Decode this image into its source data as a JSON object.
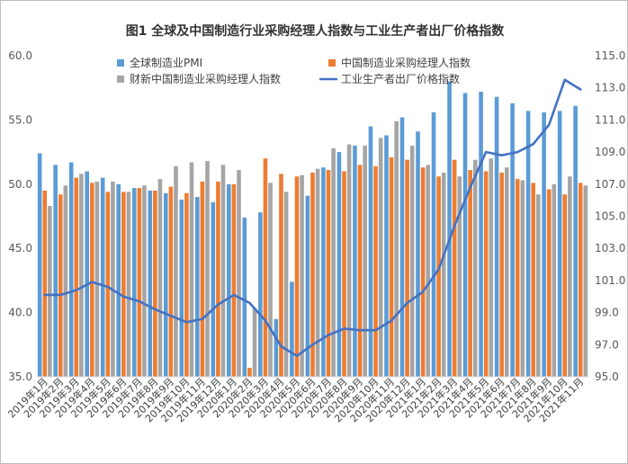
{
  "chart_data": {
    "type": "bar",
    "title": "图1 全球及中国制造行业采购经理人指数与工业生产者出厂价格指数",
    "categories": [
      "2019年1月",
      "2019年2月",
      "2019年3月",
      "2019年4月",
      "2019年5月",
      "2019年6月",
      "2019年7月",
      "2019年8月",
      "2019年9月",
      "2019年10月",
      "2019年11月",
      "2019年12月",
      "2020年1月",
      "2020年2月",
      "2020年3月",
      "2020年4月",
      "2020年5月",
      "2020年6月",
      "2020年7月",
      "2020年8月",
      "2020年9月",
      "2020年10月",
      "2020年11月",
      "2020年12月",
      "2021年1月",
      "2021年2月",
      "2021年3月",
      "2021年4月",
      "2021年5月",
      "2021年6月",
      "2021年7月",
      "2021年8月",
      "2021年9月",
      "2021年10月",
      "2021年11月"
    ],
    "series": [
      {
        "name": "全球制造业PMI",
        "type": "bar",
        "axis": "left",
        "color": "#5b9bd5",
        "values": [
          52.4,
          51.5,
          51.7,
          51.0,
          50.5,
          50.0,
          49.7,
          49.5,
          49.3,
          48.8,
          49.0,
          48.6,
          50.0,
          47.4,
          47.8,
          39.5,
          42.4,
          49.1,
          51.3,
          52.5,
          53.0,
          54.5,
          53.8,
          55.2,
          54.1,
          55.6,
          58.0,
          57.1,
          57.2,
          56.8,
          56.3,
          55.7,
          55.6,
          55.7,
          56.1
        ]
      },
      {
        "name": "中国制造业采购经理人指数",
        "type": "bar",
        "axis": "left",
        "color": "#ed7d31",
        "values": [
          49.5,
          49.2,
          50.5,
          50.1,
          49.4,
          49.4,
          49.7,
          49.5,
          49.8,
          49.3,
          50.2,
          50.2,
          50.0,
          35.7,
          52.0,
          50.8,
          50.6,
          50.9,
          51.1,
          51.0,
          51.5,
          51.4,
          52.1,
          51.9,
          51.3,
          50.6,
          51.9,
          51.1,
          51.0,
          50.9,
          50.4,
          50.1,
          49.6,
          49.2,
          50.1
        ]
      },
      {
        "name": "财新中国制造业采购经理人指数",
        "type": "bar",
        "axis": "left",
        "color": "#a5a5a5",
        "values": [
          48.3,
          49.9,
          50.8,
          50.2,
          50.2,
          49.4,
          49.9,
          50.4,
          51.4,
          51.7,
          51.8,
          51.5,
          51.1,
          40.3,
          50.1,
          49.4,
          50.7,
          51.2,
          52.8,
          53.1,
          53.0,
          53.6,
          54.9,
          53.0,
          51.5,
          50.9,
          50.6,
          51.9,
          52.0,
          51.3,
          50.3,
          49.2,
          50.0,
          50.6,
          49.9
        ]
      },
      {
        "name": "工业生产者出厂价格指数",
        "type": "line",
        "axis": "right",
        "color": "#4472c4",
        "values": [
          100.1,
          100.1,
          100.4,
          100.9,
          100.6,
          100.0,
          99.7,
          99.2,
          98.8,
          98.4,
          98.6,
          99.5,
          100.1,
          99.6,
          98.5,
          96.9,
          96.3,
          97.0,
          97.6,
          98.0,
          97.9,
          97.9,
          98.5,
          99.6,
          100.3,
          101.7,
          104.4,
          106.8,
          109.0,
          108.8,
          109.0,
          109.5,
          110.7,
          113.5,
          112.9
        ]
      }
    ],
    "ylim_left": [
      35.0,
      60.0
    ],
    "yticks_left": [
      "35.0",
      "40.0",
      "45.0",
      "50.0",
      "55.0",
      "60.0"
    ],
    "ylim_right": [
      95.0,
      115.0
    ],
    "yticks_right": [
      "95.0",
      "97.0",
      "99.0",
      "101.0",
      "103.0",
      "105.0",
      "107.0",
      "109.0",
      "111.0",
      "113.0",
      "115.0"
    ],
    "grid": false,
    "legend_position": "top"
  }
}
